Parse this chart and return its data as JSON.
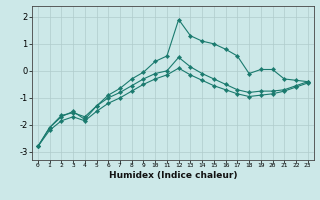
{
  "xlabel": "Humidex (Indice chaleur)",
  "background_color": "#cce8e8",
  "grid_color": "#b0cccc",
  "line_color": "#1a7a6e",
  "xlim": [
    -0.5,
    23.5
  ],
  "ylim": [
    -3.3,
    2.4
  ],
  "x_ticks": [
    0,
    1,
    2,
    3,
    4,
    5,
    6,
    7,
    8,
    9,
    10,
    11,
    12,
    13,
    14,
    15,
    16,
    17,
    18,
    19,
    20,
    21,
    22,
    23
  ],
  "y_ticks": [
    -3,
    -2,
    -1,
    0,
    1,
    2
  ],
  "series": [
    {
      "x": [
        0,
        1,
        2,
        3,
        4,
        5,
        6,
        7,
        8,
        9,
        10,
        11,
        12,
        13,
        14,
        15,
        16,
        17,
        18,
        19,
        20,
        21,
        22,
        23
      ],
      "y": [
        -2.8,
        -2.1,
        -1.7,
        -1.5,
        -1.8,
        -1.3,
        -0.9,
        -0.65,
        -0.3,
        -0.05,
        0.35,
        0.55,
        1.9,
        1.3,
        1.1,
        1.0,
        0.8,
        0.55,
        -0.1,
        0.05,
        0.05,
        -0.3,
        -0.35,
        -0.4
      ]
    },
    {
      "x": [
        0,
        1,
        2,
        3,
        4,
        5,
        6,
        7,
        8,
        9,
        10,
        11,
        12,
        13,
        14,
        15,
        16,
        17,
        18,
        19,
        20,
        21,
        22,
        23
      ],
      "y": [
        -2.8,
        -2.1,
        -1.65,
        -1.55,
        -1.7,
        -1.3,
        -1.0,
        -0.8,
        -0.55,
        -0.3,
        -0.1,
        0.0,
        0.5,
        0.15,
        -0.1,
        -0.3,
        -0.5,
        -0.7,
        -0.8,
        -0.75,
        -0.75,
        -0.7,
        -0.55,
        -0.4
      ]
    },
    {
      "x": [
        0,
        1,
        2,
        3,
        4,
        5,
        6,
        7,
        8,
        9,
        10,
        11,
        12,
        13,
        14,
        15,
        16,
        17,
        18,
        19,
        20,
        21,
        22,
        23
      ],
      "y": [
        -2.8,
        -2.2,
        -1.85,
        -1.7,
        -1.85,
        -1.5,
        -1.2,
        -1.0,
        -0.75,
        -0.5,
        -0.3,
        -0.15,
        0.1,
        -0.15,
        -0.35,
        -0.55,
        -0.7,
        -0.85,
        -0.95,
        -0.9,
        -0.85,
        -0.75,
        -0.6,
        -0.45
      ]
    }
  ]
}
